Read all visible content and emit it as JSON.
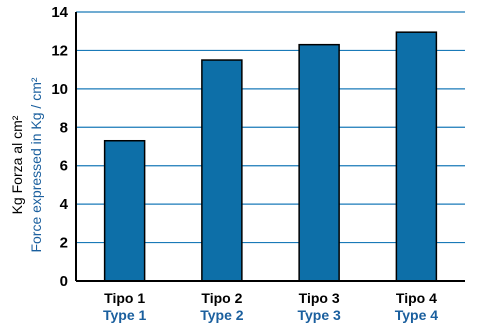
{
  "chart_data": {
    "type": "bar",
    "categories": [
      "Tipo 1",
      "Tipo 2",
      "Tipo 3",
      "Tipo 4"
    ],
    "categories_secondary": [
      "Type 1",
      "Type 2",
      "Type 3",
      "Type 4"
    ],
    "values": [
      7.3,
      11.5,
      12.3,
      12.95
    ],
    "ylim": [
      0,
      14
    ],
    "yticks": [
      "0",
      "2",
      "4",
      "6",
      "8",
      "10",
      "12",
      "14"
    ],
    "ylabel_primary": "Kg Forza al cm²",
    "ylabel_secondary": "Force expressed in Kg / cm²",
    "grid": true,
    "legend": "none"
  },
  "colors": {
    "bar": "#0d6fa8",
    "grid": "#1a7ab8",
    "axis": "#000000",
    "secondary_text": "#1a5f9e",
    "primary_text": "#000000"
  }
}
